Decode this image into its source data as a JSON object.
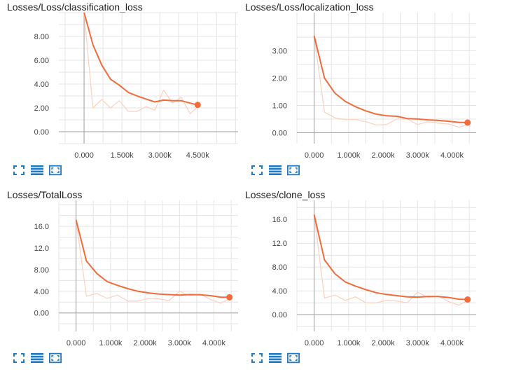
{
  "colors": {
    "line": "#f26b3a",
    "raw": "#fbd3c2",
    "grid": "#e4e4e4",
    "axis": "#9e9e9e",
    "icon": "#1e7bc4"
  },
  "icons": [
    "expand-icon",
    "data-list-icon",
    "fit-domain-icon"
  ],
  "chart_data": [
    {
      "type": "line",
      "title": "Losses/Loss/classification_loss",
      "xlim": [
        -1000,
        6100
      ],
      "ylim": [
        -1.0,
        10.0
      ],
      "x_ticks": [
        0,
        1500,
        3000,
        4500
      ],
      "x_tick_labels": [
        "0.000",
        "1.500k",
        "3.000k",
        "4.500k"
      ],
      "y_ticks": [
        0,
        2,
        4,
        6,
        8
      ],
      "y_tick_labels": [
        "0.00",
        "2.00",
        "4.00",
        "6.00",
        "8.00"
      ],
      "series": [
        {
          "role": "smoothed",
          "x": [
            0,
            350,
            700,
            1050,
            1400,
            1750,
            2100,
            2450,
            2800,
            3150,
            3500,
            3850,
            4200,
            4500
          ],
          "y": [
            10.0,
            7.3,
            5.6,
            4.4,
            3.9,
            3.3,
            3.0,
            2.75,
            2.5,
            2.65,
            2.6,
            2.6,
            2.4,
            2.25
          ]
        },
        {
          "role": "raw",
          "x": [
            0,
            350,
            700,
            1050,
            1400,
            1750,
            2100,
            2450,
            2800,
            3150,
            3500,
            3850,
            4200,
            4500
          ],
          "y": [
            10.0,
            2.0,
            2.7,
            2.0,
            2.6,
            1.7,
            1.7,
            2.1,
            1.8,
            3.5,
            2.4,
            2.9,
            1.5,
            2.1
          ]
        }
      ]
    },
    {
      "type": "line",
      "title": "Losses/Loss/localization_loss",
      "xlim": [
        -500,
        4700
      ],
      "ylim": [
        -0.4,
        4.4
      ],
      "x_ticks": [
        0,
        1000,
        2000,
        3000,
        4000
      ],
      "x_tick_labels": [
        "0.000",
        "1.000k",
        "2.000k",
        "3.000k",
        "4.000k"
      ],
      "y_ticks": [
        0,
        1,
        2,
        3
      ],
      "y_tick_labels": [
        "0.00",
        "1.00",
        "2.00",
        "3.00"
      ],
      "series": [
        {
          "role": "smoothed",
          "x": [
            0,
            300,
            600,
            900,
            1200,
            1500,
            1800,
            2100,
            2400,
            2700,
            3000,
            3300,
            3600,
            3900,
            4200,
            4450
          ],
          "y": [
            3.55,
            2.0,
            1.45,
            1.15,
            0.95,
            0.8,
            0.68,
            0.62,
            0.6,
            0.52,
            0.5,
            0.47,
            0.45,
            0.42,
            0.38,
            0.37
          ]
        },
        {
          "role": "raw",
          "x": [
            0,
            300,
            600,
            900,
            1200,
            1500,
            1800,
            2100,
            2400,
            2700,
            3000,
            3300,
            3600,
            3900,
            4200,
            4450
          ],
          "y": [
            3.55,
            0.75,
            0.55,
            0.48,
            0.48,
            0.4,
            0.28,
            0.3,
            0.5,
            0.5,
            0.3,
            0.4,
            0.35,
            0.32,
            0.2,
            0.3
          ]
        }
      ]
    },
    {
      "type": "line",
      "title": "Losses/TotalLoss",
      "xlim": [
        -500,
        4700
      ],
      "ylim": [
        -3.4,
        20.8
      ],
      "x_ticks": [
        0,
        1000,
        2000,
        3000,
        4000
      ],
      "x_tick_labels": [
        "0.000",
        "1.000k",
        "2.000k",
        "3.000k",
        "4.000k"
      ],
      "y_ticks": [
        0,
        4,
        8,
        12,
        16
      ],
      "y_tick_labels": [
        "0.00",
        "4.00",
        "8.00",
        "12.0",
        "16.0"
      ],
      "series": [
        {
          "role": "smoothed",
          "x": [
            0,
            300,
            600,
            900,
            1200,
            1500,
            1800,
            2100,
            2400,
            2700,
            3000,
            3300,
            3600,
            3900,
            4200,
            4450
          ],
          "y": [
            17.2,
            9.6,
            7.3,
            5.8,
            5.1,
            4.5,
            4.0,
            3.7,
            3.5,
            3.4,
            3.3,
            3.4,
            3.35,
            3.2,
            2.9,
            2.9
          ]
        },
        {
          "role": "raw",
          "x": [
            0,
            300,
            600,
            900,
            1200,
            1500,
            1800,
            2100,
            2400,
            2700,
            3000,
            3300,
            3600,
            3900,
            4200,
            4450
          ],
          "y": [
            17.2,
            3.1,
            3.6,
            2.7,
            3.3,
            2.2,
            2.2,
            2.7,
            2.6,
            2.3,
            4.0,
            3.2,
            3.5,
            2.5,
            1.8,
            2.6
          ]
        }
      ]
    },
    {
      "type": "line",
      "title": "Losses/clone_loss",
      "xlim": [
        -500,
        4700
      ],
      "ylim": [
        -2.8,
        19.2
      ],
      "x_ticks": [
        0,
        1000,
        2000,
        3000,
        4000
      ],
      "x_tick_labels": [
        "0.000",
        "1.000k",
        "2.000k",
        "3.000k",
        "4.000k"
      ],
      "y_ticks": [
        0,
        4,
        8,
        12,
        16
      ],
      "y_tick_labels": [
        "0.00",
        "4.00",
        "8.00",
        "12.0",
        "16.0"
      ],
      "series": [
        {
          "role": "smoothed",
          "x": [
            0,
            300,
            600,
            900,
            1200,
            1500,
            1800,
            2100,
            2400,
            2700,
            3000,
            3300,
            3600,
            3900,
            4200,
            4450
          ],
          "y": [
            16.8,
            9.2,
            6.9,
            5.5,
            4.8,
            4.2,
            3.7,
            3.4,
            3.2,
            3.0,
            2.95,
            3.05,
            3.05,
            2.9,
            2.6,
            2.55
          ]
        },
        {
          "role": "raw",
          "x": [
            0,
            300,
            600,
            900,
            1200,
            1500,
            1800,
            2100,
            2400,
            2700,
            3000,
            3300,
            3600,
            3900,
            4200,
            4450
          ],
          "y": [
            16.8,
            2.8,
            3.3,
            2.4,
            3.0,
            2.0,
            2.0,
            2.4,
            2.3,
            2.0,
            3.8,
            2.9,
            3.1,
            2.2,
            1.6,
            2.4
          ]
        }
      ]
    }
  ]
}
